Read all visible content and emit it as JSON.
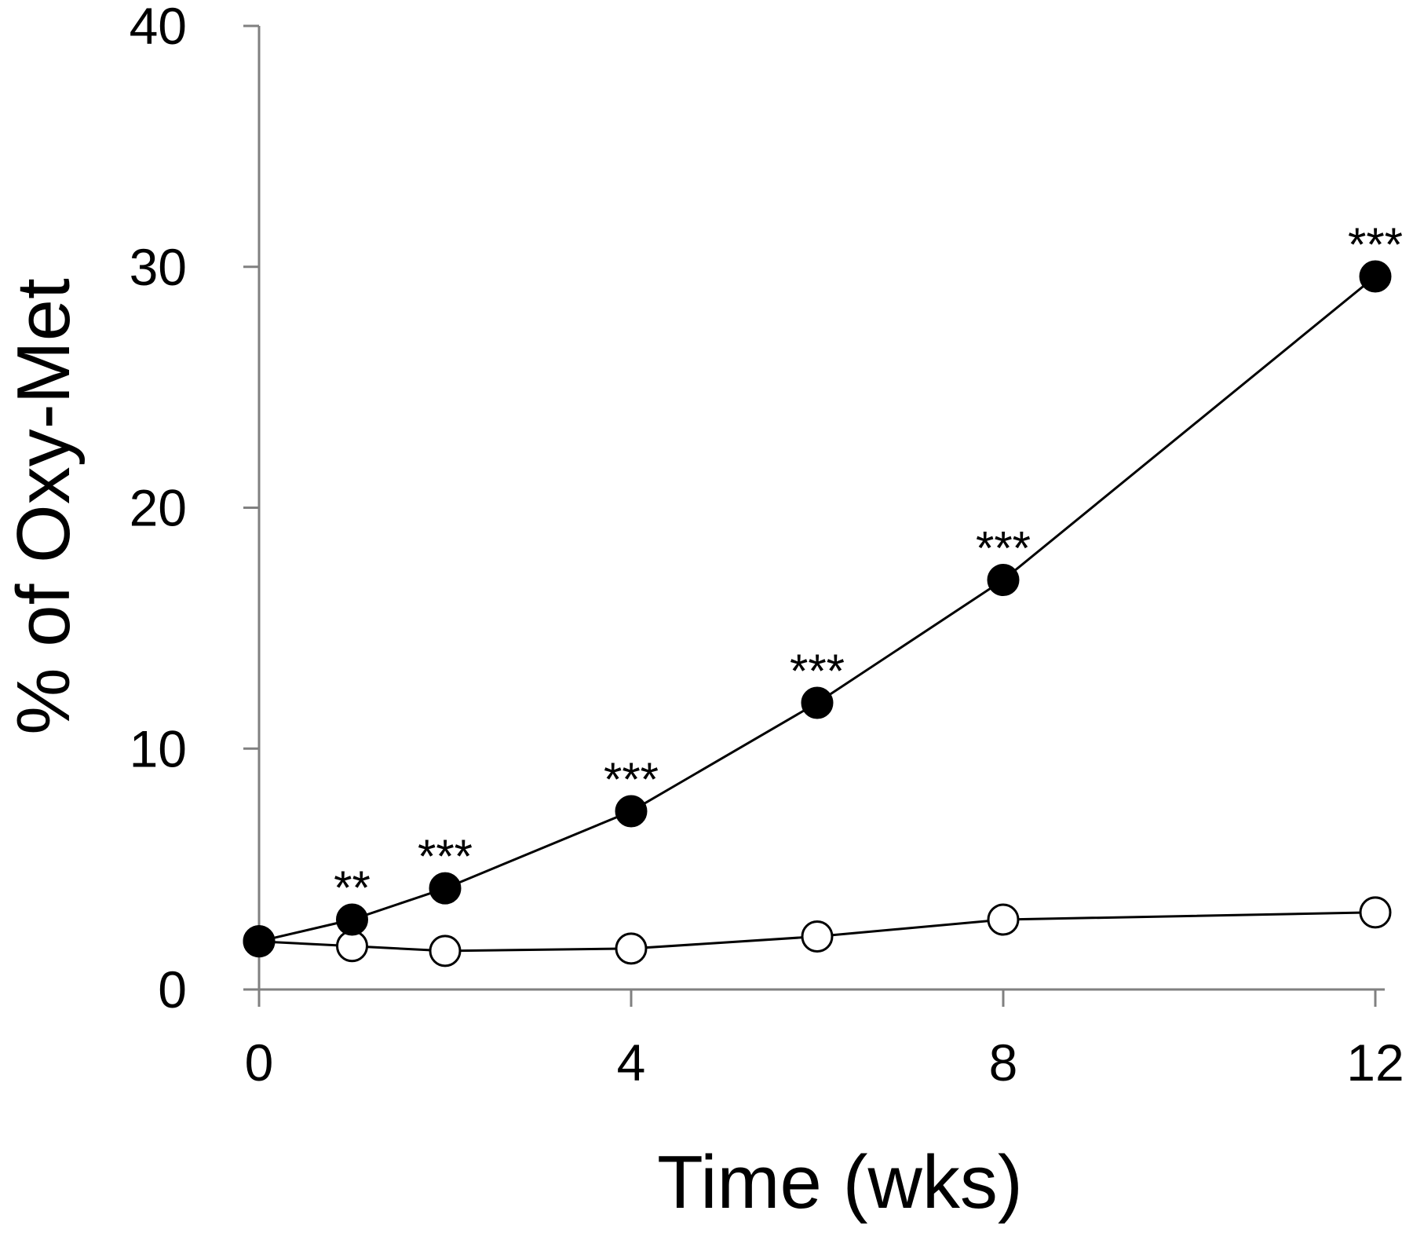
{
  "chart_data": {
    "type": "line",
    "title": "",
    "xlabel": "Time (wks)",
    "ylabel": "% of Oxy-Met",
    "xlim": [
      0,
      12
    ],
    "ylim": [
      0,
      40
    ],
    "x_ticks": [
      0,
      4,
      8,
      12
    ],
    "x_tick_labels": [
      "0",
      "4",
      "8",
      "12"
    ],
    "y_ticks": [
      0,
      10,
      20,
      30,
      40
    ],
    "y_tick_labels": [
      "0",
      "10",
      "20",
      "30",
      "40"
    ],
    "grid": false,
    "legend": "none",
    "axis_color": "#808080",
    "series": [
      {
        "marker": "filled-circle",
        "color": "#000000",
        "x": [
          0,
          1,
          2,
          4,
          6,
          8,
          12
        ],
        "y": [
          2.0,
          2.9,
          4.2,
          7.4,
          11.9,
          17.0,
          29.6
        ],
        "annotations": [
          "",
          "**",
          "***",
          "***",
          "***",
          "***",
          "***"
        ]
      },
      {
        "marker": "open-circle",
        "color": "#000000",
        "x": [
          0,
          1,
          2,
          4,
          6,
          8,
          12
        ],
        "y": [
          2.0,
          1.8,
          1.6,
          1.7,
          2.2,
          2.9,
          3.2
        ],
        "annotations": [
          "",
          "",
          "",
          "",
          "",
          "",
          ""
        ]
      }
    ]
  }
}
